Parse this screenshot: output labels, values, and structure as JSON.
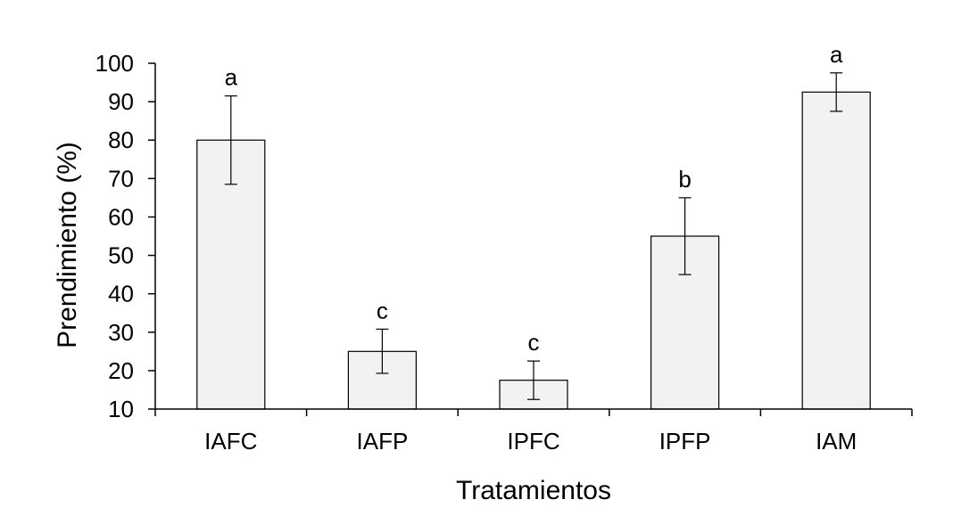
{
  "colors": {
    "bar_fill": "#f2f2f2",
    "bar_stroke": "#000000",
    "axis": "#000000",
    "background": "#ffffff"
  },
  "chart_data": {
    "type": "bar",
    "title": "",
    "xlabel": "Tratamientos",
    "ylabel": "Prendimiento (%)",
    "ylim": [
      10,
      100
    ],
    "yticks": [
      10,
      20,
      30,
      40,
      50,
      60,
      70,
      80,
      90,
      100
    ],
    "grid": false,
    "legend": "none",
    "categories": [
      "IAFC",
      "IAFP",
      "IPFC",
      "IPFP",
      "IAM"
    ],
    "values": [
      80,
      25,
      17.5,
      55,
      92.5
    ],
    "error_low": [
      68.5,
      19.3,
      12.5,
      45,
      87.5
    ],
    "error_high": [
      91.5,
      30.8,
      22.5,
      65,
      97.5
    ],
    "significance_labels": [
      "a",
      "c",
      "c",
      "b",
      "a"
    ]
  }
}
